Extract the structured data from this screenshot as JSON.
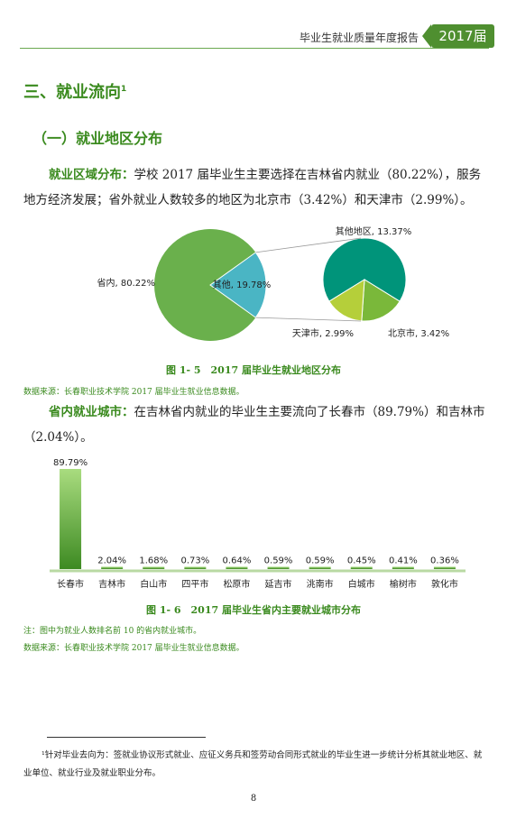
{
  "header": {
    "title": "毕业生就业质量年度报告",
    "badge": "2017届"
  },
  "section": {
    "title": "三、就业流向",
    "sup": "1"
  },
  "subsection": {
    "title": "（一）就业地区分布"
  },
  "para1": {
    "lead": "就业区域分布：",
    "text": "学校 2017 届毕业生主要选择在吉林省内就业（80.22%），服务地方经济发展；省外就业人数较多的地区为北京市（3.42%）和天津市（2.99%）。"
  },
  "fig5": {
    "caption": "图 1- 5　2017 届毕业生就业地区分布",
    "source": "数据来源：长春职业技术学院 2017 届毕业生就业信息数据。"
  },
  "para2": {
    "lead": "省内就业城市：",
    "text": "在吉林省内就业的毕业生主要流向了长春市（89.79%）和吉林市（2.04%）。"
  },
  "fig6": {
    "caption": "图 1- 6　2017 届毕业生省内主要就业城市分布",
    "note": "注：图中为就业人数排名前 10 的省内就业城市。",
    "source": "数据来源：长春职业技术学院 2017 届毕业生就业信息数据。"
  },
  "footnote": "¹针对毕业去向为：签就业协议形式就业、应征义务兵和签劳动合同形式就业的毕业生进一步统计分析其就业地区、就业单位、就业行业及就业职业分布。",
  "page_number": "8",
  "colors": {
    "accent": "#3a8a1e",
    "pie_main": "#6ab04c",
    "pie_other": "#4ab5c4",
    "pie_teal": "#00947a",
    "pie_lime": "#b5cf3a",
    "pie_green": "#7ab83a"
  },
  "chart_data": [
    {
      "type": "pie",
      "slices": [
        {
          "label": "省内, 80.22%",
          "value": 80.22
        },
        {
          "label": "其他, 19.78%",
          "value": 19.78
        }
      ],
      "breakdown_of": "其他",
      "sub_slices": [
        {
          "label": "其他地区, 13.37%",
          "value": 13.37
        },
        {
          "label": "北京市, 3.42%",
          "value": 3.42
        },
        {
          "label": "天津市, 2.99%",
          "value": 2.99
        }
      ]
    },
    {
      "type": "bar",
      "categories": [
        "长春市",
        "吉林市",
        "白山市",
        "四平市",
        "松原市",
        "延吉市",
        "洮南市",
        "白城市",
        "榆树市",
        "敦化市"
      ],
      "values": [
        89.79,
        2.04,
        1.68,
        0.73,
        0.64,
        0.59,
        0.59,
        0.45,
        0.41,
        0.36
      ],
      "value_labels": [
        "89.79%",
        "2.04%",
        "1.68%",
        "0.73%",
        "0.64%",
        "0.59%",
        "0.59%",
        "0.45%",
        "0.41%",
        "0.36%"
      ],
      "ylim": [
        0,
        100
      ]
    }
  ]
}
